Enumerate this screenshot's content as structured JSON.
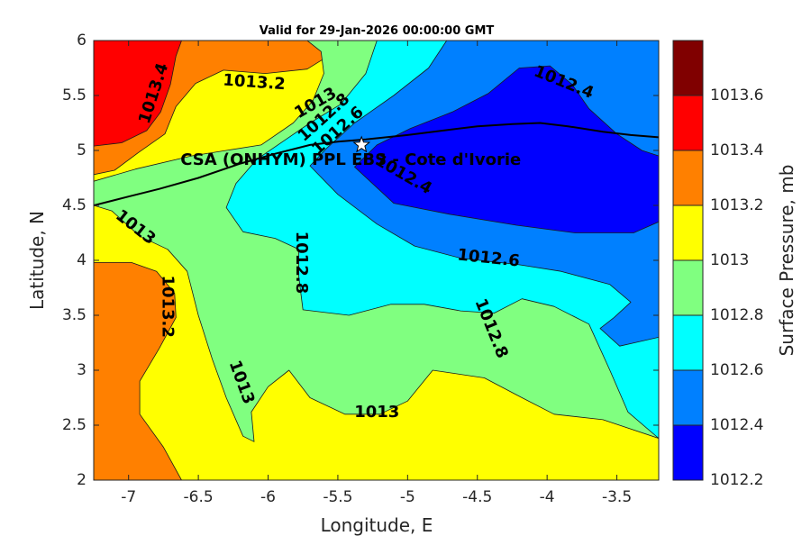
{
  "chart_data": {
    "type": "contour",
    "title": "Valid for 29-Jan-2026 00:00:00 GMT",
    "xlabel": "Longitude, E",
    "ylabel": "Latitude, N",
    "xlim": [
      -7.25,
      -3.2
    ],
    "ylim": [
      2,
      6
    ],
    "xticks": [
      -7,
      -6.5,
      -6,
      -5.5,
      -5,
      -4.5,
      -4,
      -3.5
    ],
    "yticks": [
      2,
      2.5,
      3,
      3.5,
      4,
      4.5,
      5,
      5.5,
      6
    ],
    "colorbar": {
      "label": "Surface Pressure, mb",
      "ticks": [
        1012.2,
        1012.4,
        1012.6,
        1012.8,
        1013,
        1013.2,
        1013.4,
        1013.6
      ],
      "colors": [
        "#0000ff",
        "#0080ff",
        "#00ffff",
        "#80ff80",
        "#ffff00",
        "#ff8000",
        "#ff0000",
        "#800000"
      ]
    },
    "site": {
      "name": "CSA (ONHYM) PPL EBS  - Cote d'Ivorie",
      "lon": -5.33,
      "lat": 5.05
    },
    "contour_labels": [
      {
        "text": "1013.4",
        "lon": -6.82,
        "lat": 5.52,
        "angle": -72
      },
      {
        "text": "1013.2",
        "lon": -6.1,
        "lat": 5.62,
        "angle": 4
      },
      {
        "text": "1013",
        "lon": -5.66,
        "lat": 5.43,
        "angle": -30
      },
      {
        "text": "1012.8",
        "lon": -5.6,
        "lat": 5.3,
        "angle": -42
      },
      {
        "text": "1012.6",
        "lon": -5.5,
        "lat": 5.18,
        "angle": -42
      },
      {
        "text": "1012.4",
        "lon": -3.88,
        "lat": 5.62,
        "angle": 22
      },
      {
        "text": "1012.4",
        "lon": -5.03,
        "lat": 4.78,
        "angle": 30
      },
      {
        "text": "1013",
        "lon": -6.95,
        "lat": 4.3,
        "angle": 38
      },
      {
        "text": "1012.8",
        "lon": -5.76,
        "lat": 3.98,
        "angle": 90
      },
      {
        "text": "1012.6",
        "lon": -4.42,
        "lat": 4.02,
        "angle": 6
      },
      {
        "text": "1013.2",
        "lon": -6.72,
        "lat": 3.58,
        "angle": 90
      },
      {
        "text": "1012.8",
        "lon": -4.4,
        "lat": 3.38,
        "angle": 68
      },
      {
        "text": "1013",
        "lon": -6.19,
        "lat": 2.89,
        "angle": 70
      },
      {
        "text": "1013",
        "lon": -5.22,
        "lat": 2.62,
        "angle": 0
      }
    ],
    "regions": [
      {
        "level": 1013.0,
        "points": [
          [
            -7.25,
            6
          ],
          [
            -3.2,
            6
          ],
          [
            -3.2,
            2
          ],
          [
            -7.25,
            2
          ]
        ]
      },
      {
        "level": 1013.2,
        "points": [
          [
            -7.25,
            6
          ],
          [
            -5.62,
            6
          ],
          [
            -5.58,
            5.85
          ],
          [
            -5.72,
            5.74
          ],
          [
            -6.02,
            5.7
          ],
          [
            -6.32,
            5.73
          ],
          [
            -6.52,
            5.61
          ],
          [
            -6.66,
            5.4
          ],
          [
            -6.74,
            5.15
          ],
          [
            -6.93,
            4.98
          ],
          [
            -7.1,
            4.82
          ],
          [
            -7.25,
            4.78
          ]
        ]
      },
      {
        "level": 1013.4,
        "points": [
          [
            -7.25,
            6
          ],
          [
            -6.62,
            6
          ],
          [
            -6.66,
            5.86
          ],
          [
            -6.7,
            5.6
          ],
          [
            -6.77,
            5.35
          ],
          [
            -6.87,
            5.18
          ],
          [
            -7.05,
            5.07
          ],
          [
            -7.25,
            5.04
          ]
        ]
      },
      {
        "level": 1013.2,
        "points": [
          [
            -7.25,
            3.98
          ],
          [
            -6.98,
            3.98
          ],
          [
            -6.8,
            3.9
          ],
          [
            -6.67,
            3.7
          ],
          [
            -6.66,
            3.48
          ],
          [
            -6.78,
            3.2
          ],
          [
            -6.92,
            2.9
          ],
          [
            -6.92,
            2.6
          ],
          [
            -6.75,
            2.3
          ],
          [
            -6.62,
            2
          ],
          [
            -7.25,
            2
          ]
        ]
      },
      {
        "level": 1012.8,
        "points": [
          [
            -5.72,
            6
          ],
          [
            -3.2,
            6
          ],
          [
            -3.2,
            2.38
          ],
          [
            -3.6,
            2.55
          ],
          [
            -3.95,
            2.6
          ],
          [
            -4.18,
            2.75
          ],
          [
            -4.45,
            2.93
          ],
          [
            -4.82,
            3
          ],
          [
            -5.0,
            2.72
          ],
          [
            -5.2,
            2.6
          ],
          [
            -5.45,
            2.6
          ],
          [
            -5.7,
            2.75
          ],
          [
            -5.85,
            3.0
          ],
          [
            -6.0,
            2.85
          ],
          [
            -6.12,
            2.62
          ],
          [
            -6.1,
            2.35
          ],
          [
            -6.18,
            2.4
          ],
          [
            -6.3,
            2.75
          ],
          [
            -6.4,
            3.1
          ],
          [
            -6.5,
            3.5
          ],
          [
            -6.58,
            3.9
          ],
          [
            -6.72,
            4.1
          ],
          [
            -6.92,
            4.22
          ],
          [
            -7.12,
            4.45
          ],
          [
            -7.25,
            4.5
          ],
          [
            -7.25,
            4.72
          ],
          [
            -6.95,
            4.83
          ],
          [
            -6.55,
            4.95
          ],
          [
            -6.05,
            5.05
          ],
          [
            -5.82,
            5.25
          ],
          [
            -5.68,
            5.45
          ],
          [
            -5.6,
            5.7
          ],
          [
            -5.62,
            5.9
          ]
        ]
      },
      {
        "level": 1012.6,
        "points": [
          [
            -5.22,
            6
          ],
          [
            -3.2,
            6
          ],
          [
            -3.2,
            2.38
          ],
          [
            -3.42,
            2.62
          ],
          [
            -3.55,
            3.0
          ],
          [
            -3.7,
            3.42
          ],
          [
            -3.95,
            3.58
          ],
          [
            -4.18,
            3.65
          ],
          [
            -4.38,
            3.52
          ],
          [
            -4.62,
            3.54
          ],
          [
            -4.88,
            3.6
          ],
          [
            -5.12,
            3.6
          ],
          [
            -5.42,
            3.5
          ],
          [
            -5.75,
            3.55
          ],
          [
            -5.78,
            3.85
          ],
          [
            -5.78,
            4.1
          ],
          [
            -5.95,
            4.2
          ],
          [
            -6.18,
            4.26
          ],
          [
            -6.3,
            4.48
          ],
          [
            -6.23,
            4.7
          ],
          [
            -6.08,
            4.92
          ],
          [
            -5.85,
            5.12
          ],
          [
            -5.7,
            5.25
          ],
          [
            -5.48,
            5.42
          ],
          [
            -5.3,
            5.7
          ]
        ]
      },
      {
        "level": 1012.4,
        "points": [
          [
            -4.72,
            6
          ],
          [
            -3.2,
            6
          ],
          [
            -3.2,
            3.3
          ],
          [
            -3.48,
            3.22
          ],
          [
            -3.62,
            3.38
          ],
          [
            -3.52,
            3.48
          ],
          [
            -3.4,
            3.62
          ],
          [
            -3.55,
            3.78
          ],
          [
            -3.9,
            3.9
          ],
          [
            -4.2,
            3.96
          ],
          [
            -4.62,
            4.02
          ],
          [
            -4.95,
            4.13
          ],
          [
            -5.22,
            4.33
          ],
          [
            -5.5,
            4.6
          ],
          [
            -5.7,
            4.86
          ],
          [
            -5.58,
            5.02
          ],
          [
            -5.38,
            5.25
          ],
          [
            -5.1,
            5.5
          ],
          [
            -4.85,
            5.75
          ]
        ]
      },
      {
        "level": 1012.2,
        "points": [
          [
            -4.2,
            5.75
          ],
          [
            -3.98,
            5.77
          ],
          [
            -3.82,
            5.6
          ],
          [
            -3.7,
            5.38
          ],
          [
            -3.5,
            5.15
          ],
          [
            -3.32,
            5.0
          ],
          [
            -3.2,
            4.95
          ],
          [
            -3.2,
            4.35
          ],
          [
            -3.38,
            4.25
          ],
          [
            -3.8,
            4.25
          ],
          [
            -4.22,
            4.32
          ],
          [
            -4.7,
            4.42
          ],
          [
            -5.1,
            4.52
          ],
          [
            -5.38,
            4.85
          ],
          [
            -5.22,
            5.05
          ],
          [
            -4.98,
            5.2
          ],
          [
            -4.68,
            5.35
          ],
          [
            -4.42,
            5.52
          ]
        ]
      }
    ],
    "coastline": [
      [
        -7.25,
        4.5
      ],
      [
        -7.0,
        4.58
      ],
      [
        -6.78,
        4.65
      ],
      [
        -6.5,
        4.75
      ],
      [
        -6.2,
        4.88
      ],
      [
        -5.95,
        4.97
      ],
      [
        -5.7,
        5.05
      ],
      [
        -5.5,
        5.08
      ],
      [
        -5.3,
        5.1
      ],
      [
        -5.0,
        5.14
      ],
      [
        -4.75,
        5.18
      ],
      [
        -4.5,
        5.22
      ],
      [
        -4.25,
        5.24
      ],
      [
        -4.05,
        5.25
      ],
      [
        -3.85,
        5.22
      ],
      [
        -3.6,
        5.17
      ],
      [
        -3.4,
        5.14
      ],
      [
        -3.2,
        5.12
      ]
    ]
  }
}
